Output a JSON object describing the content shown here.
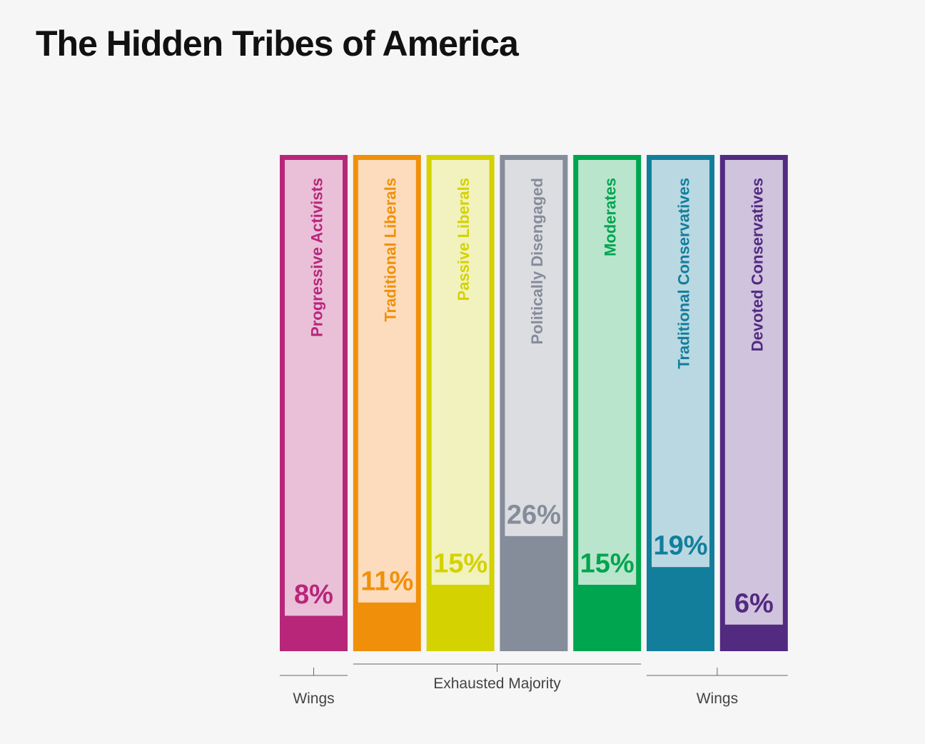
{
  "title": "The Hidden Tribes of America",
  "chart_data": {
    "type": "bar",
    "title": "The Hidden Tribes of America",
    "categories": [
      "Progressive Activists",
      "Traditional Liberals",
      "Passive Liberals",
      "Politically Disengaged",
      "Moderates",
      "Traditional Conservatives",
      "Devoted Conservatives"
    ],
    "values": [
      8,
      11,
      15,
      26,
      15,
      19,
      6
    ],
    "value_labels": [
      "8%",
      "11%",
      "15%",
      "26%",
      "15%",
      "19%",
      "6%"
    ],
    "unit": "%",
    "colors": [
      "#b8267a",
      "#f0900a",
      "#d4d200",
      "#858c9a",
      "#00a550",
      "#127e9c",
      "#522a80"
    ],
    "light_colors": [
      "#e9c0d8",
      "#fcdcbc",
      "#f1f2bd",
      "#dcdde1",
      "#b9e5cc",
      "#bad8e1",
      "#d0c3dd"
    ],
    "groups": [
      {
        "label": "Wings",
        "categories": [
          "Progressive Activists"
        ]
      },
      {
        "label": "Exhausted Majority",
        "categories": [
          "Traditional Liberals",
          "Passive Liberals",
          "Politically Disengaged",
          "Moderates"
        ]
      },
      {
        "label": "Wings",
        "categories": [
          "Traditional Conservatives",
          "Devoted Conservatives"
        ]
      }
    ]
  }
}
